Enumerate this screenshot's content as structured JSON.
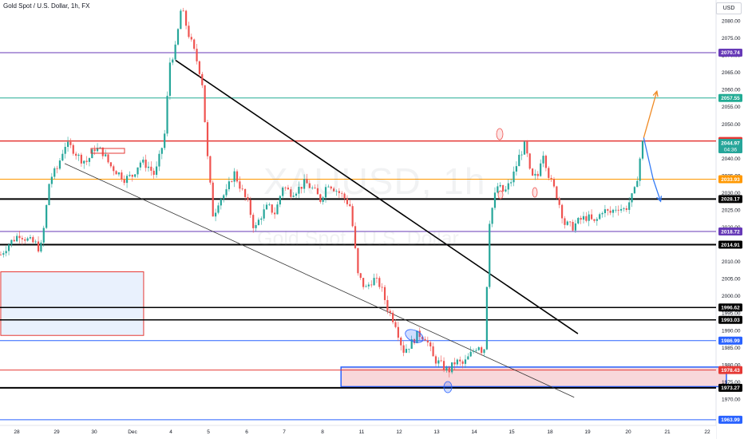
{
  "header": {
    "title": "Gold Spot / U.S. Dollar, 1h, FX",
    "currency": "USD"
  },
  "watermark": {
    "symbol": "XAUUSD, 1h",
    "description": "Gold Spot / U.S. Dollar"
  },
  "colors": {
    "up": "#26a69a",
    "down": "#ef5350",
    "purple": "#673ab7",
    "red_level": "#e53935",
    "orange_level": "#ff9800",
    "black_level": "#000000",
    "blue_level": "#2962ff",
    "teal_level": "#22ab94",
    "projection_orange": "#f08a24",
    "projection_blue": "#3179f5",
    "zone_blue_fill": "#e9f1fd",
    "zone_red_fill": "#f8d7da"
  },
  "chart_data": {
    "type": "candlestick",
    "symbol": "XAUUSD",
    "timeframe": "1h",
    "y_range": [
      1961,
      2086
    ],
    "price_ticks": [
      1970,
      1975,
      1980,
      1985,
      1990,
      1995,
      2000,
      2005,
      2010,
      2015,
      2020,
      2025,
      2030,
      2035,
      2040,
      2045,
      2050,
      2055,
      2060,
      2065,
      2070,
      2075,
      2080
    ],
    "x_labels": [
      "28",
      "29",
      "30",
      "Dec",
      "4",
      "5",
      "6",
      "7",
      "8",
      "11",
      "12",
      "13",
      "14",
      "15",
      "18",
      "19",
      "20",
      "21",
      "22"
    ],
    "current_price": 2044.97,
    "countdown": "04:36",
    "horizontal_levels": [
      {
        "price": 2070.74,
        "color": "purple",
        "width": 1
      },
      {
        "price": 2057.55,
        "color": "teal",
        "width": 1
      },
      {
        "price": 2045.06,
        "color": "red",
        "width": 1.5
      },
      {
        "price": 2033.93,
        "color": "orange",
        "width": 1
      },
      {
        "price": 2028.17,
        "color": "black",
        "width": 2
      },
      {
        "price": 2018.72,
        "color": "purple",
        "width": 1
      },
      {
        "price": 2014.91,
        "color": "black",
        "width": 2
      },
      {
        "price": 1996.62,
        "color": "black",
        "width": 1.5
      },
      {
        "price": 1993.03,
        "color": "black",
        "width": 1.5
      },
      {
        "price": 1986.99,
        "color": "blue",
        "width": 1
      },
      {
        "price": 1978.43,
        "color": "red",
        "width": 1
      },
      {
        "price": 1973.27,
        "color": "black",
        "width": 2
      },
      {
        "price": 1963.99,
        "color": "blue",
        "width": 1
      }
    ],
    "zones": [
      {
        "name": "blue-zone",
        "price_top": 2007,
        "price_bottom": 1988.5,
        "day_start": -0.5,
        "day_end": 3.3,
        "fill": "zone_blue_fill",
        "border": "red_level"
      },
      {
        "name": "red-zone",
        "price_top": 1979.3,
        "price_bottom": 1973.6,
        "day_start": 8.55,
        "day_end": 18.8,
        "fill": "zone_red_fill",
        "border": "blue_level"
      }
    ],
    "trendlines": [
      {
        "day1": 4.15,
        "price1": 2068.5,
        "day2": 14.85,
        "price2": 1989,
        "color": "#000000",
        "width": 1.6
      },
      {
        "day1": 1.2,
        "price1": 2038.5,
        "day2": 14.75,
        "price2": 1970.5,
        "color": "#333333",
        "width": 0.8
      }
    ],
    "projections": [
      {
        "name": "orange-projection",
        "color": "projection_orange",
        "points": [
          [
            16.6,
            2046
          ],
          [
            16.95,
            2059.5
          ]
        ]
      },
      {
        "name": "blue-projection",
        "color": "projection_blue",
        "points": [
          [
            16.6,
            2046
          ],
          [
            16.85,
            2034
          ],
          [
            17.05,
            2027.5
          ]
        ]
      }
    ],
    "candle_anchors": [
      [
        -0.5,
        2012
      ],
      [
        -0.3,
        2015
      ],
      [
        0.0,
        2018
      ],
      [
        0.25,
        2016
      ],
      [
        0.45,
        2015
      ],
      [
        0.55,
        2013
      ],
      [
        0.65,
        2020
      ],
      [
        0.8,
        2034
      ],
      [
        1.0,
        2037
      ],
      [
        1.2,
        2044
      ],
      [
        1.4,
        2043
      ],
      [
        1.6,
        2040
      ],
      [
        1.8,
        2039
      ],
      [
        2.0,
        2043
      ],
      [
        2.2,
        2042
      ],
      [
        2.4,
        2038
      ],
      [
        2.6,
        2036
      ],
      [
        2.8,
        2034
      ],
      [
        3.0,
        2035
      ],
      [
        3.2,
        2039
      ],
      [
        3.4,
        2038
      ],
      [
        3.6,
        2035
      ],
      [
        3.85,
        2046
      ],
      [
        4.0,
        2068
      ],
      [
        4.15,
        2072
      ],
      [
        4.3,
        2084
      ],
      [
        4.5,
        2076
      ],
      [
        4.7,
        2069
      ],
      [
        4.85,
        2063
      ],
      [
        5.0,
        2040
      ],
      [
        5.15,
        2023
      ],
      [
        5.3,
        2028
      ],
      [
        5.5,
        2030
      ],
      [
        5.7,
        2036
      ],
      [
        5.9,
        2031
      ],
      [
        6.1,
        2026
      ],
      [
        6.25,
        2019
      ],
      [
        6.4,
        2023
      ],
      [
        6.6,
        2026
      ],
      [
        6.8,
        2024
      ],
      [
        7.0,
        2032
      ],
      [
        7.2,
        2030
      ],
      [
        7.4,
        2031
      ],
      [
        7.6,
        2033
      ],
      [
        7.8,
        2031
      ],
      [
        8.0,
        2028
      ],
      [
        8.2,
        2033
      ],
      [
        8.4,
        2031
      ],
      [
        8.6,
        2029
      ],
      [
        8.8,
        2026
      ],
      [
        9.0,
        2006
      ],
      [
        9.2,
        2002
      ],
      [
        9.4,
        2005
      ],
      [
        9.6,
        2003
      ],
      [
        9.8,
        1996
      ],
      [
        10.0,
        1992
      ],
      [
        10.2,
        1984
      ],
      [
        10.4,
        1986
      ],
      [
        10.6,
        1989
      ],
      [
        10.8,
        1988
      ],
      [
        11.0,
        1982
      ],
      [
        11.2,
        1980
      ],
      [
        11.4,
        1978
      ],
      [
        11.6,
        1981
      ],
      [
        11.8,
        1980
      ],
      [
        12.0,
        1983
      ],
      [
        12.2,
        1986
      ],
      [
        12.35,
        1983
      ],
      [
        12.5,
        2022
      ],
      [
        12.7,
        2032
      ],
      [
        12.9,
        2030
      ],
      [
        13.1,
        2034
      ],
      [
        13.3,
        2041
      ],
      [
        13.45,
        2044
      ],
      [
        13.6,
        2034
      ],
      [
        13.8,
        2035
      ],
      [
        13.9,
        2043
      ],
      [
        14.1,
        2034
      ],
      [
        14.3,
        2029
      ],
      [
        14.5,
        2021
      ],
      [
        14.7,
        2020
      ],
      [
        14.9,
        2022
      ],
      [
        15.1,
        2023
      ],
      [
        15.3,
        2021
      ],
      [
        15.5,
        2025
      ],
      [
        15.7,
        2024
      ],
      [
        15.9,
        2026
      ],
      [
        16.1,
        2025
      ],
      [
        16.25,
        2028
      ],
      [
        16.35,
        2030
      ],
      [
        16.45,
        2036
      ],
      [
        16.55,
        2044
      ],
      [
        16.6,
        2045
      ]
    ]
  },
  "axis_labels": {
    "l2070": "2070.74",
    "l2057": "2057.55",
    "l2045": "2045.06",
    "current": "2044.97",
    "countdown": "04:36",
    "l2033": "2033.93",
    "l2028": "2028.17",
    "l2018": "2018.72",
    "l2014": "2014.91",
    "l1996": "1996.62",
    "l1993": "1993.03",
    "l1986": "1986.99",
    "l1978": "1978.43",
    "l1973": "1973.27",
    "l1963": "1963.99"
  }
}
